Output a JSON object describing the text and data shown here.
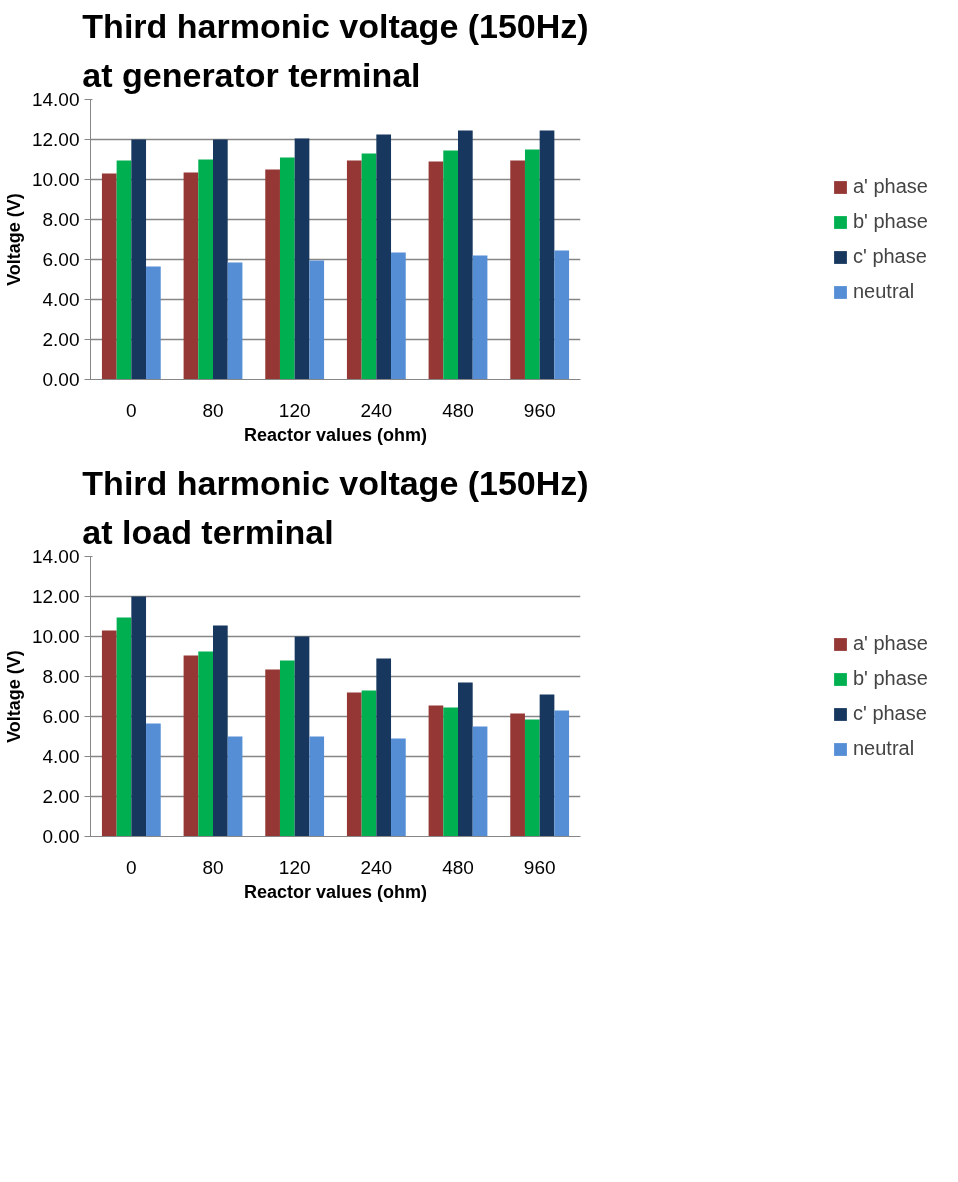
{
  "chart_data": [
    {
      "type": "bar",
      "title": "Third harmonic voltage (150Hz) at generator terminal",
      "xlabel": "Reactor values (ohm)",
      "ylabel": "Voltage (V)",
      "categories": [
        "0",
        "80",
        "120",
        "240",
        "480",
        "960"
      ],
      "series": [
        {
          "name": "a' phase",
          "color": "#953735",
          "values": [
            10.3,
            10.35,
            10.5,
            10.95,
            10.9,
            10.95
          ]
        },
        {
          "name": "b' phase",
          "color": "#00b050",
          "values": [
            10.95,
            11.0,
            11.1,
            11.3,
            11.45,
            11.5
          ]
        },
        {
          "name": "c' phase",
          "color": "#17375e",
          "values": [
            12.0,
            12.0,
            12.05,
            12.25,
            12.45,
            12.45
          ]
        },
        {
          "name": "neutral",
          "color": "#558ed5",
          "values": [
            5.65,
            5.85,
            5.95,
            6.35,
            6.2,
            6.45
          ]
        }
      ],
      "ylim": [
        0,
        14
      ],
      "yticks": [
        {
          "value": 0,
          "label": "0.00"
        },
        {
          "value": 2,
          "label": "2.00"
        },
        {
          "value": 4,
          "label": "4.00"
        },
        {
          "value": 6,
          "label": "6.00"
        },
        {
          "value": 8,
          "label": "8.00"
        },
        {
          "value": 10,
          "label": "10.00"
        },
        {
          "value": 12,
          "label": "12.00"
        },
        {
          "value": 14,
          "label": "14.00"
        }
      ],
      "grid": "y",
      "legend": "right"
    },
    {
      "type": "bar",
      "title": "Third harmonic voltage (150Hz) at load terminal",
      "xlabel": "Reactor values (ohm)",
      "ylabel": "Voltage (V)",
      "categories": [
        "0",
        "80",
        "120",
        "240",
        "480",
        "960"
      ],
      "series": [
        {
          "name": "a' phase",
          "color": "#953735",
          "values": [
            10.3,
            9.05,
            8.35,
            7.2,
            6.55,
            6.15
          ]
        },
        {
          "name": "b' phase",
          "color": "#00b050",
          "values": [
            10.95,
            9.25,
            8.8,
            7.3,
            6.45,
            5.85
          ]
        },
        {
          "name": "c' phase",
          "color": "#17375e",
          "values": [
            12.0,
            10.55,
            10.0,
            8.9,
            7.7,
            7.1
          ]
        },
        {
          "name": "neutral",
          "color": "#558ed5",
          "values": [
            5.65,
            5.0,
            5.0,
            4.9,
            5.5,
            6.3
          ]
        }
      ],
      "ylim": [
        0,
        14
      ],
      "yticks": [
        {
          "value": 0,
          "label": "0.00"
        },
        {
          "value": 2,
          "label": "2.00"
        },
        {
          "value": 4,
          "label": "4.00"
        },
        {
          "value": 6,
          "label": "6.00"
        },
        {
          "value": 8,
          "label": "8.00"
        },
        {
          "value": 10,
          "label": "10.00"
        },
        {
          "value": 12,
          "label": "12.00"
        },
        {
          "value": 14,
          "label": "14.00"
        }
      ],
      "grid": "y",
      "legend": "right"
    }
  ]
}
